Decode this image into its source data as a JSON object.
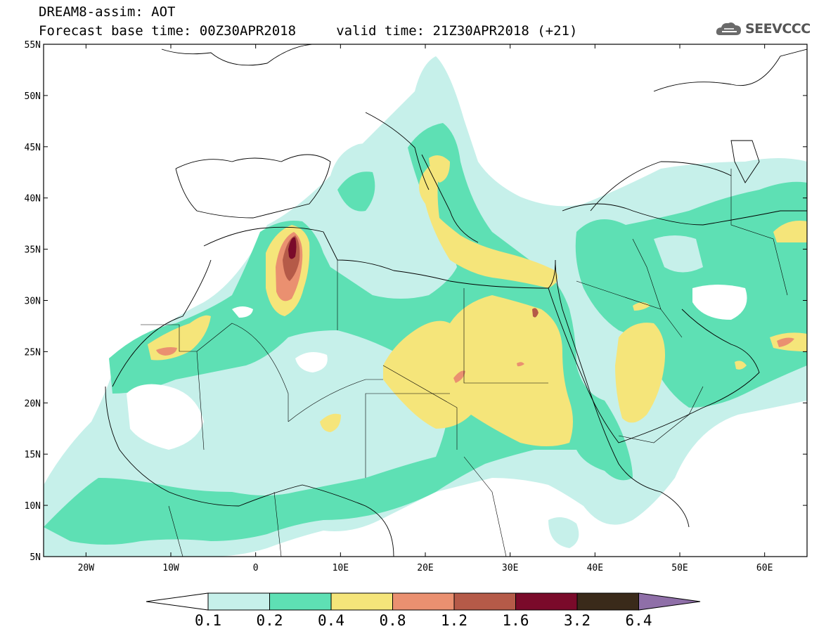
{
  "header": {
    "title_line1": "DREAM8-assim: AOT",
    "title_line2": "Forecast base time: 00Z30APR2018     valid time: 21Z30APR2018 (+21)",
    "logo_text": "SEEVCCC"
  },
  "map": {
    "variable": "AOT",
    "lon_range": [
      -25,
      65
    ],
    "lat_range": [
      5,
      55
    ],
    "lat_ticks": [
      {
        "value": 55,
        "label": "55N"
      },
      {
        "value": 50,
        "label": "50N"
      },
      {
        "value": 45,
        "label": "45N"
      },
      {
        "value": 40,
        "label": "40N"
      },
      {
        "value": 35,
        "label": "35N"
      },
      {
        "value": 30,
        "label": "30N"
      },
      {
        "value": 25,
        "label": "25N"
      },
      {
        "value": 20,
        "label": "20N"
      },
      {
        "value": 15,
        "label": "15N"
      },
      {
        "value": 10,
        "label": "10N"
      },
      {
        "value": 5,
        "label": "5N"
      }
    ],
    "lon_ticks": [
      {
        "value": -20,
        "label": "20W"
      },
      {
        "value": -10,
        "label": "10W"
      },
      {
        "value": 0,
        "label": "0"
      },
      {
        "value": 10,
        "label": "10E"
      },
      {
        "value": 20,
        "label": "20E"
      },
      {
        "value": 30,
        "label": "30E"
      },
      {
        "value": 40,
        "label": "40E"
      },
      {
        "value": 50,
        "label": "50E"
      },
      {
        "value": 60,
        "label": "60E"
      }
    ]
  },
  "colorbar": {
    "bins": [
      {
        "color": "#c6f0ea"
      },
      {
        "color": "#5ee0b4"
      },
      {
        "color": "#f5e57a"
      },
      {
        "color": "#ea9070"
      },
      {
        "color": "#b55a48"
      },
      {
        "color": "#7a0a2a"
      },
      {
        "color": "#3a2a1a"
      }
    ],
    "over_color": "#8f6fa8",
    "under_color": "#ffffff",
    "labels": [
      "0.1",
      "0.2",
      "0.4",
      "0.8",
      "1.2",
      "1.6",
      "3.2",
      "6.4"
    ]
  }
}
